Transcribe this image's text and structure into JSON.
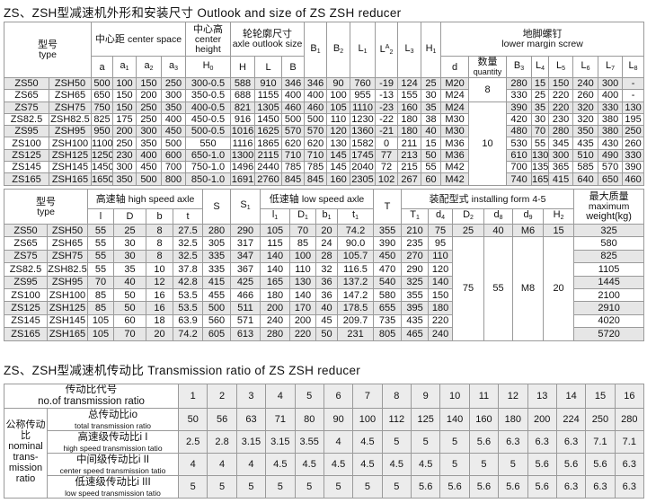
{
  "titles": {
    "outlook": "ZS、ZSH型减速机外形和安装尺寸   Outlook and size of ZS ZSH reducer",
    "ratio": "ZS、ZSH型减速机传动比   Transmission ratio of ZS ZSH reducer"
  },
  "table1": {
    "headers": {
      "type_cn": "型号",
      "type_en": "type",
      "center_space_cn": "中心距",
      "center_space_en": "center space",
      "center_height_cn": "中心高",
      "center_height_en": "center height",
      "outlook_cn": "轮轮廓尺寸",
      "outlook_en": "axle outlook size",
      "screw_cn": "地脚螺钉",
      "screw_en": "lower margin screw",
      "quantity_cn": "数量",
      "quantity_en": "quantity",
      "cols": {
        "a": {
          "b": "a",
          "s": ""
        },
        "a1": {
          "b": "a",
          "s": "1"
        },
        "a2": {
          "b": "a",
          "s": "2"
        },
        "a3": {
          "b": "a",
          "s": "3"
        },
        "H0": {
          "b": "H",
          "s": "0"
        },
        "H": {
          "b": "H",
          "s": ""
        },
        "L": {
          "b": "L",
          "s": ""
        },
        "B": {
          "b": "B",
          "s": ""
        },
        "B1": {
          "b": "B",
          "s": "1"
        },
        "B2": {
          "b": "B",
          "s": "2"
        },
        "L1": {
          "b": "L",
          "s": "1"
        },
        "LA2": {
          "b": "L",
          "sup": "A",
          "s": "2"
        },
        "L3": {
          "b": "L",
          "s": "3"
        },
        "H1": {
          "b": "H",
          "s": "1"
        },
        "d": {
          "b": "d",
          "s": ""
        },
        "B3": {
          "b": "B",
          "s": "3"
        },
        "L4": {
          "b": "L",
          "s": "4"
        },
        "L5": {
          "b": "L",
          "s": "5"
        },
        "L6": {
          "b": "L",
          "s": "6"
        },
        "L7": {
          "b": "L",
          "s": "7"
        },
        "L8": {
          "b": "L",
          "s": "8"
        }
      }
    },
    "quantity_groups": [
      "8",
      "10"
    ],
    "rows": [
      [
        "ZS50",
        "ZSH50",
        "500",
        "100",
        "150",
        "250",
        "300-0.5",
        "588",
        "910",
        "346",
        "346",
        "90",
        "760",
        "-19",
        "124",
        "25",
        "M20",
        "280",
        "15",
        "150",
        "240",
        "300",
        "-"
      ],
      [
        "ZS65",
        "ZSH65",
        "650",
        "150",
        "200",
        "300",
        "350-0.5",
        "688",
        "1155",
        "400",
        "400",
        "100",
        "955",
        "-13",
        "155",
        "30",
        "M24",
        "330",
        "25",
        "220",
        "260",
        "400",
        "-"
      ],
      [
        "ZS75",
        "ZSH75",
        "750",
        "150",
        "250",
        "350",
        "400-0.5",
        "821",
        "1305",
        "460",
        "460",
        "105",
        "1110",
        "-23",
        "160",
        "35",
        "M24",
        "390",
        "35",
        "220",
        "320",
        "330",
        "130"
      ],
      [
        "ZS82.5",
        "ZSH82.5",
        "825",
        "175",
        "250",
        "400",
        "450-0.5",
        "916",
        "1450",
        "500",
        "500",
        "110",
        "1230",
        "-22",
        "180",
        "38",
        "M30",
        "420",
        "30",
        "230",
        "320",
        "380",
        "195"
      ],
      [
        "ZS95",
        "ZSH95",
        "950",
        "200",
        "300",
        "450",
        "500-0.5",
        "1016",
        "1625",
        "570",
        "570",
        "120",
        "1360",
        "-21",
        "180",
        "40",
        "M30",
        "480",
        "70",
        "280",
        "350",
        "380",
        "250"
      ],
      [
        "ZS100",
        "ZSH100",
        "1100",
        "250",
        "350",
        "500",
        "550",
        "1116",
        "1865",
        "620",
        "620",
        "130",
        "1582",
        "0",
        "211",
        "15",
        "M36",
        "530",
        "55",
        "345",
        "435",
        "430",
        "260"
      ],
      [
        "ZS125",
        "ZSH125",
        "1250",
        "230",
        "400",
        "600",
        "650-1.0",
        "1300",
        "2115",
        "710",
        "710",
        "145",
        "1745",
        "77",
        "213",
        "50",
        "M36",
        "610",
        "130",
        "300",
        "510",
        "490",
        "330"
      ],
      [
        "ZS145",
        "ZSH145",
        "1450",
        "300",
        "450",
        "700",
        "750-1.0",
        "1496",
        "2440",
        "785",
        "785",
        "145",
        "2040",
        "72",
        "215",
        "55",
        "M42",
        "700",
        "135",
        "365",
        "585",
        "570",
        "390"
      ],
      [
        "ZS165",
        "ZSH165",
        "1650",
        "350",
        "500",
        "800",
        "850-1.0",
        "1691",
        "2760",
        "845",
        "845",
        "160",
        "2305",
        "102",
        "267",
        "60",
        "M42",
        "740",
        "165",
        "415",
        "640",
        "650",
        "460"
      ]
    ]
  },
  "table2": {
    "headers": {
      "type_cn": "型号",
      "type_en": "type",
      "high_cn": "高速轴",
      "high_en": "high speed axle",
      "low_cn": "低速轴",
      "low_en": "low speed axle",
      "install_cn": "装配型式",
      "install_en": "installing form 4-5",
      "weight_cn": "最大质量",
      "weight_en1": "maximum",
      "weight_en2": "weight(kg)",
      "cols": {
        "l": {
          "b": "l",
          "s": ""
        },
        "D": {
          "b": "D",
          "s": ""
        },
        "b": {
          "b": "b",
          "s": ""
        },
        "t": {
          "b": "t",
          "s": ""
        },
        "S": {
          "b": "S",
          "s": ""
        },
        "S1": {
          "b": "S",
          "s": "1"
        },
        "l1": {
          "b": "l",
          "s": "1"
        },
        "D1": {
          "b": "D",
          "s": "1"
        },
        "b1": {
          "b": "b",
          "s": "1"
        },
        "t1": {
          "b": "t",
          "s": "1"
        },
        "T": {
          "b": "T",
          "s": ""
        },
        "T1": {
          "b": "T",
          "s": "1"
        },
        "d4": {
          "b": "d",
          "s": "4"
        },
        "D2": {
          "b": "D",
          "s": "2"
        },
        "d8": {
          "b": "d",
          "s": "8"
        },
        "d9": {
          "b": "d",
          "s": "9"
        },
        "H2": {
          "b": "H",
          "s": "2"
        }
      }
    },
    "install_first": [
      "25",
      "40",
      "M6",
      "15"
    ],
    "install_merged": [
      "75",
      "55",
      "M8",
      "20"
    ],
    "rows": [
      {
        "left": [
          "ZS50",
          "ZSH50",
          "55",
          "25",
          "8",
          "27.5",
          "280",
          "290",
          "105",
          "70",
          "20",
          "74.2",
          "355",
          "210",
          "75"
        ],
        "weight": "325"
      },
      {
        "left": [
          "ZS65",
          "ZSH65",
          "55",
          "30",
          "8",
          "32.5",
          "305",
          "317",
          "115",
          "85",
          "24",
          "90.0",
          "390",
          "235",
          "95"
        ],
        "weight": "580"
      },
      {
        "left": [
          "ZS75",
          "ZSH75",
          "55",
          "30",
          "8",
          "32.5",
          "335",
          "347",
          "140",
          "100",
          "28",
          "105.7",
          "450",
          "270",
          "110"
        ],
        "weight": "825"
      },
      {
        "left": [
          "ZS82.5",
          "ZSH82.5",
          "55",
          "35",
          "10",
          "37.8",
          "335",
          "367",
          "140",
          "110",
          "32",
          "116.5",
          "470",
          "290",
          "120"
        ],
        "weight": "1105"
      },
      {
        "left": [
          "ZS95",
          "ZSH95",
          "70",
          "40",
          "12",
          "42.8",
          "415",
          "425",
          "165",
          "130",
          "36",
          "137.2",
          "540",
          "325",
          "140"
        ],
        "weight": "1445"
      },
      {
        "left": [
          "ZS100",
          "ZSH100",
          "85",
          "50",
          "16",
          "53.5",
          "455",
          "466",
          "180",
          "140",
          "36",
          "147.2",
          "580",
          "355",
          "150"
        ],
        "weight": "2100"
      },
      {
        "left": [
          "ZS125",
          "ZSH125",
          "85",
          "50",
          "16",
          "53.5",
          "500",
          "511",
          "200",
          "170",
          "40",
          "178.5",
          "655",
          "395",
          "180"
        ],
        "weight": "2910"
      },
      {
        "left": [
          "ZS145",
          "ZSH145",
          "105",
          "60",
          "18",
          "63.9",
          "560",
          "571",
          "240",
          "200",
          "45",
          "209.7",
          "735",
          "435",
          "220"
        ],
        "weight": "4020"
      },
      {
        "left": [
          "ZS165",
          "ZSH165",
          "105",
          "70",
          "20",
          "74.2",
          "605",
          "613",
          "280",
          "220",
          "50",
          "231",
          "805",
          "465",
          "240"
        ],
        "weight": "5720"
      }
    ]
  },
  "table3": {
    "no_cn": "传动比代号",
    "no_en": "no.of transmission ratio",
    "nominal_cn1": "公称传动",
    "nominal_cn2": "比",
    "nominal_en": "nominal trans- mission ratio",
    "numbers": [
      "1",
      "2",
      "3",
      "4",
      "5",
      "6",
      "7",
      "8",
      "9",
      "10",
      "11",
      "12",
      "13",
      "14",
      "15",
      "16"
    ],
    "rows": [
      {
        "cn": "总传动比io",
        "en": "total transmission ratio",
        "values": [
          "50",
          "56",
          "63",
          "71",
          "80",
          "90",
          "100",
          "112",
          "125",
          "140",
          "160",
          "180",
          "200",
          "224",
          "250",
          "280"
        ]
      },
      {
        "cn": "高速级传动比i I",
        "en": "high speed transmission tatio",
        "values": [
          "2.5",
          "2.8",
          "3.15",
          "3.15",
          "3.55",
          "4",
          "4.5",
          "5",
          "5",
          "5",
          "5.6",
          "6.3",
          "6.3",
          "6.3",
          "7.1",
          "7.1"
        ]
      },
      {
        "cn": "中间级传动比i II",
        "en": "center speed transmission tatio",
        "values": [
          "4",
          "4",
          "4",
          "4.5",
          "4.5",
          "4.5",
          "4.5",
          "4.5",
          "4.5",
          "5",
          "5",
          "5",
          "5.6",
          "5.6",
          "5.6",
          "6.3"
        ]
      },
      {
        "cn": "低速级传动比i III",
        "en": "low speed transmission tatio",
        "values": [
          "5",
          "5",
          "5",
          "5",
          "5",
          "5",
          "5",
          "5",
          "5.6",
          "5.6",
          "5.6",
          "5.6",
          "5.6",
          "6.3",
          "6.3",
          "6.3"
        ]
      }
    ]
  }
}
